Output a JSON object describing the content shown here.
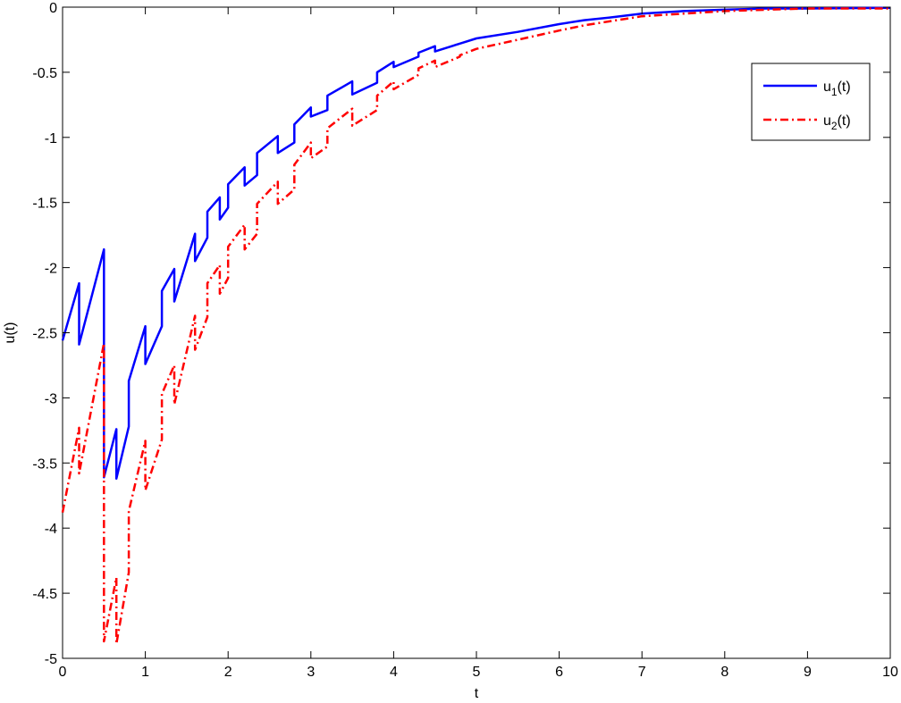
{
  "chart_data": {
    "type": "line",
    "title": "",
    "xlabel": "t",
    "ylabel": "u(t)",
    "xlim": [
      0,
      10
    ],
    "ylim": [
      -5,
      0
    ],
    "xticks": [
      0,
      1,
      2,
      3,
      4,
      5,
      6,
      7,
      8,
      9,
      10
    ],
    "yticks": [
      0,
      -0.5,
      -1,
      -1.5,
      -2,
      -2.5,
      -3,
      -3.5,
      -4,
      -4.5,
      -5
    ],
    "grid": false,
    "legend": "top-right",
    "series": [
      {
        "name": "u1(t)",
        "label_base": "u",
        "label_sub": "1",
        "label_tail": "(t)",
        "color": "#0000ff",
        "dash": "solid",
        "x": [
          0,
          0.2,
          0.2,
          0.5,
          0.5,
          0.65,
          0.65,
          0.8,
          0.8,
          1.0,
          1.0,
          1.2,
          1.2,
          1.35,
          1.35,
          1.6,
          1.6,
          1.75,
          1.75,
          1.9,
          1.9,
          2.0,
          2.0,
          2.2,
          2.2,
          2.35,
          2.35,
          2.6,
          2.6,
          2.8,
          2.8,
          3.0,
          3.0,
          3.2,
          3.2,
          3.5,
          3.5,
          3.8,
          3.8,
          4.0,
          4.0,
          4.3,
          4.3,
          4.5,
          4.5,
          4.8,
          4.8,
          5.0,
          5.0,
          5.5,
          5.5,
          6.0,
          6.0,
          6.3,
          6.3,
          6.6,
          6.6,
          7.0,
          7.0,
          7.5,
          7.5,
          8.0,
          8.5,
          9.0,
          10.0
        ],
        "y": [
          -2.56,
          -2.12,
          -2.59,
          -1.86,
          -3.61,
          -3.24,
          -3.62,
          -3.22,
          -2.87,
          -2.45,
          -2.74,
          -2.45,
          -2.18,
          -2.01,
          -2.26,
          -1.74,
          -1.95,
          -1.77,
          -1.57,
          -1.46,
          -1.63,
          -1.54,
          -1.36,
          -1.23,
          -1.37,
          -1.29,
          -1.12,
          -0.99,
          -1.12,
          -1.04,
          -0.9,
          -0.77,
          -0.84,
          -0.79,
          -0.68,
          -0.57,
          -0.67,
          -0.58,
          -0.5,
          -0.42,
          -0.46,
          -0.38,
          -0.35,
          -0.3,
          -0.34,
          -0.28,
          -0.28,
          -0.24,
          -0.24,
          -0.19,
          -0.19,
          -0.13,
          -0.13,
          -0.1,
          -0.1,
          -0.08,
          -0.08,
          -0.05,
          -0.05,
          -0.03,
          -0.03,
          -0.02,
          -0.01,
          -0.01,
          -0.005
        ]
      },
      {
        "name": "u2(t)",
        "label_base": "u",
        "label_sub": "2",
        "label_tail": "(t)",
        "color": "#ff0000",
        "dash": "dashdot",
        "x": [
          0,
          0.2,
          0.2,
          0.5,
          0.5,
          0.65,
          0.65,
          0.8,
          0.8,
          1.0,
          1.0,
          1.2,
          1.2,
          1.35,
          1.35,
          1.6,
          1.6,
          1.75,
          1.75,
          1.9,
          1.9,
          2.0,
          2.0,
          2.2,
          2.2,
          2.35,
          2.35,
          2.6,
          2.6,
          2.8,
          2.8,
          3.0,
          3.0,
          3.2,
          3.2,
          3.5,
          3.5,
          3.8,
          3.8,
          4.0,
          4.0,
          4.3,
          4.3,
          4.5,
          4.5,
          4.8,
          4.8,
          5.0,
          5.0,
          5.5,
          5.5,
          6.0,
          6.0,
          6.3,
          6.3,
          6.6,
          6.6,
          7.0,
          7.0,
          7.5,
          7.5,
          8.0,
          8.5,
          9.0,
          10.0
        ],
        "y": [
          -3.88,
          -3.23,
          -3.58,
          -2.58,
          -4.87,
          -4.38,
          -4.89,
          -4.34,
          -3.87,
          -3.33,
          -3.71,
          -3.32,
          -2.97,
          -2.75,
          -3.05,
          -2.37,
          -2.63,
          -2.38,
          -2.12,
          -1.98,
          -2.2,
          -2.08,
          -1.84,
          -1.67,
          -1.86,
          -1.74,
          -1.51,
          -1.34,
          -1.51,
          -1.4,
          -1.21,
          -1.04,
          -1.16,
          -1.07,
          -0.93,
          -0.78,
          -0.91,
          -0.79,
          -0.68,
          -0.57,
          -0.63,
          -0.52,
          -0.47,
          -0.41,
          -0.46,
          -0.38,
          -0.37,
          -0.32,
          -0.32,
          -0.25,
          -0.25,
          -0.18,
          -0.18,
          -0.14,
          -0.14,
          -0.11,
          -0.11,
          -0.07,
          -0.07,
          -0.05,
          -0.05,
          -0.03,
          -0.02,
          -0.01,
          -0.01
        ]
      }
    ]
  }
}
